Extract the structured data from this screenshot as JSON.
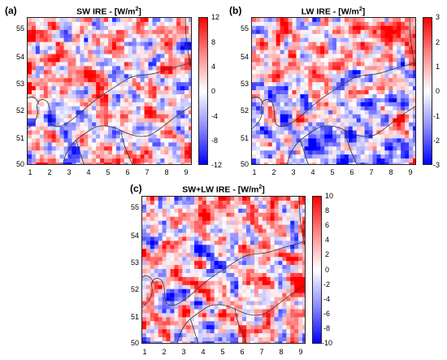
{
  "panels": [
    {
      "id": "a",
      "label": "(a)",
      "title_prefix": "SW IRE - [W/m",
      "title_sup": "2",
      "title_suffix": "]",
      "y_ticks": [
        "55",
        "54",
        "53",
        "52",
        "51",
        "50"
      ],
      "x_ticks": [
        "1",
        "2",
        "3",
        "4",
        "5",
        "6",
        "7",
        "8",
        "9"
      ],
      "colorbar_ticks": [
        "12",
        "8",
        "4",
        "0",
        "-4",
        "-8",
        "-12"
      ],
      "colorbar_range": [
        -12,
        12
      ],
      "colormap": "blue-white-red",
      "field_bias": 0.15
    },
    {
      "id": "b",
      "label": "(b)",
      "title_prefix": "LW IRE - [W/m",
      "title_sup": "2",
      "title_suffix": "]",
      "y_ticks": [
        "55",
        "54",
        "53",
        "52",
        "51",
        "50"
      ],
      "x_ticks": [
        "1",
        "2",
        "3",
        "4",
        "5",
        "6",
        "7",
        "8",
        "9"
      ],
      "colorbar_ticks": [
        "3",
        "2",
        "1",
        "0",
        "-1",
        "-2",
        "-3"
      ],
      "colorbar_range": [
        -3,
        3
      ],
      "colormap": "blue-white-red",
      "field_bias": -0.05
    },
    {
      "id": "c",
      "label": "(c)",
      "title_prefix": "SW+LW IRE - [W/m",
      "title_sup": "2",
      "title_suffix": "]",
      "y_ticks": [
        "55",
        "54",
        "53",
        "52",
        "51",
        "50"
      ],
      "x_ticks": [
        "1",
        "2",
        "3",
        "4",
        "5",
        "6",
        "7",
        "8",
        "9"
      ],
      "colorbar_ticks": [
        "10",
        "8",
        "6",
        "4",
        "2",
        "0",
        "-2",
        "-4",
        "-6",
        "-8",
        "-10"
      ],
      "colorbar_range": [
        -10,
        10
      ],
      "colormap": "blue-white-red",
      "field_bias": 0.12
    }
  ],
  "map_extent": {
    "lon": [
      0.8,
      9.4
    ],
    "lat": [
      50.0,
      55.5
    ]
  },
  "colors": {
    "positive": "#ff0000",
    "zero": "#ffffff",
    "negative": "#0000ff",
    "border": "#333333"
  },
  "icons": {
    "map_boundaries": "coastline-border-lines"
  }
}
